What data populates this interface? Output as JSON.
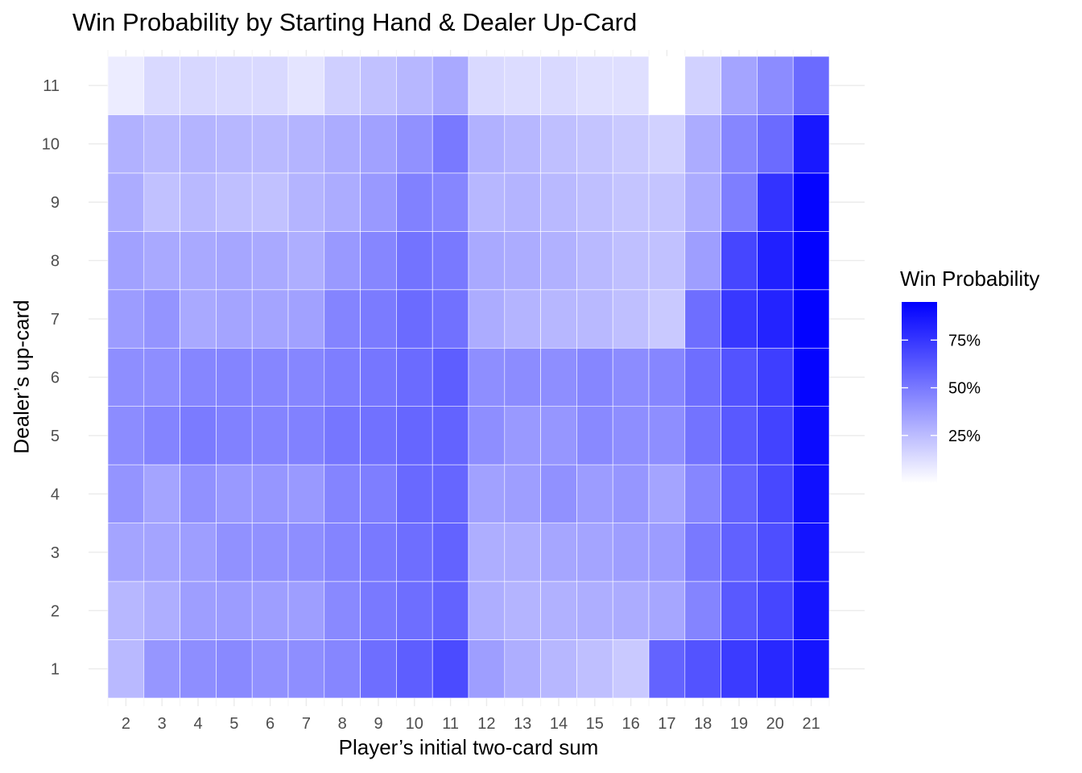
{
  "chart_data": {
    "type": "heatmap",
    "title": "Win Probability by Starting Hand & Dealer Up-Card",
    "xlabel": "Player’s initial two-card sum",
    "ylabel": "Dealer’s up-card",
    "x_categories": [
      "2",
      "3",
      "4",
      "5",
      "6",
      "7",
      "8",
      "9",
      "10",
      "11",
      "12",
      "13",
      "14",
      "15",
      "16",
      "17",
      "18",
      "19",
      "20",
      "21"
    ],
    "y_categories": [
      "1",
      "2",
      "3",
      "4",
      "5",
      "6",
      "7",
      "8",
      "9",
      "10",
      "11"
    ],
    "values_note_rows_by_dealer_upcard_1_to_11": "",
    "values": [
      [
        26,
        39,
        42,
        44,
        41,
        42,
        45,
        54,
        60,
        67,
        36,
        30,
        27,
        24,
        20,
        58,
        64,
        73,
        80,
        87
      ],
      [
        27,
        30,
        36,
        37,
        36,
        36,
        44,
        50,
        54,
        58,
        30,
        28,
        29,
        30,
        31,
        33,
        46,
        62,
        69,
        87
      ],
      [
        34,
        34,
        36,
        41,
        41,
        42,
        46,
        50,
        54,
        58,
        30,
        30,
        33,
        34,
        36,
        37,
        50,
        59,
        66,
        88
      ],
      [
        40,
        34,
        41,
        38,
        39,
        38,
        46,
        48,
        56,
        57,
        35,
        36,
        41,
        37,
        39,
        34,
        45,
        58,
        68,
        89
      ],
      [
        43,
        46,
        49,
        47,
        46,
        47,
        51,
        53,
        57,
        58,
        42,
        38,
        39,
        44,
        42,
        42,
        52,
        62,
        70,
        91
      ],
      [
        42,
        42,
        45,
        46,
        45,
        45,
        48,
        51,
        55,
        60,
        42,
        43,
        42,
        45,
        43,
        45,
        54,
        64,
        72,
        93
      ],
      [
        37,
        40,
        32,
        34,
        34,
        35,
        46,
        49,
        55,
        53,
        31,
        28,
        27,
        26,
        24,
        20,
        54,
        74,
        82,
        94
      ],
      [
        35,
        32,
        32,
        33,
        32,
        30,
        38,
        45,
        52,
        50,
        32,
        31,
        29,
        26,
        24,
        23,
        36,
        69,
        83,
        94
      ],
      [
        31,
        23,
        26,
        24,
        23,
        28,
        31,
        38,
        47,
        45,
        27,
        28,
        26,
        24,
        22,
        22,
        31,
        48,
        76,
        93
      ],
      [
        29,
        26,
        28,
        27,
        26,
        28,
        31,
        35,
        41,
        50,
        29,
        27,
        24,
        22,
        20,
        17,
        31,
        45,
        55,
        86
      ],
      [
        7,
        14,
        15,
        14,
        14,
        10,
        18,
        23,
        27,
        32,
        14,
        13,
        14,
        12,
        12,
        null,
        17,
        34,
        43,
        55
      ]
    ],
    "color_scale": {
      "low": "#ffffff",
      "high": "#0000ff",
      "na": "#ffffff"
    },
    "value_range": [
      0,
      95
    ],
    "legend": {
      "title": "Win Probability",
      "ticks": [
        "75%",
        "50%",
        "25%"
      ],
      "tick_values": [
        75,
        50,
        25
      ],
      "position": "right"
    },
    "grid": true
  }
}
